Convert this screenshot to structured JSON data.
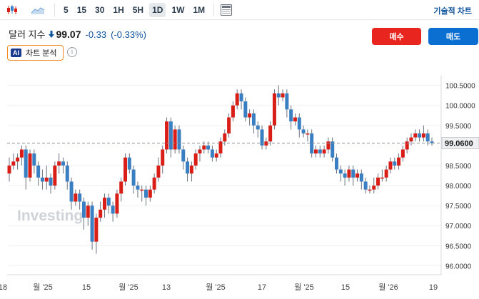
{
  "toolbar": {
    "timeframes": [
      "5",
      "15",
      "30",
      "1H",
      "5H",
      "1D",
      "1W",
      "1M"
    ],
    "active": "1D",
    "tech_chart": "기술적 차트"
  },
  "header": {
    "title": "달러 지수",
    "price": "99.07",
    "change": "-0.33",
    "change_pct": "(-0.33%)",
    "buy": "매수",
    "sell": "매도",
    "ai_badge": "AI",
    "ai_label": "차트 분석",
    "info": "i"
  },
  "watermark": "Investing",
  "colors": {
    "up": "#d91e18",
    "down": "#3a7fc1",
    "accent": "#1256a0"
  },
  "chart_data": {
    "type": "candlestick",
    "ylim": [
      95.9,
      100.6
    ],
    "y_ticks": [
      "100.5000",
      "100.0000",
      "99.5000",
      "98.5000",
      "98.0000",
      "97.5000",
      "97.0000",
      "96.5000",
      "96.0000"
    ],
    "current_price": "99.0600",
    "x_labels": [
      "18",
      "월 '25",
      "15",
      "월 '25",
      "13",
      "월 '25",
      "17",
      "월 '25",
      "15",
      "월 '26",
      "19"
    ],
    "candles": [
      [
        98.3,
        98.5,
        98.1,
        98.7
      ],
      [
        98.5,
        98.6,
        98.4,
        98.8
      ],
      [
        98.6,
        98.7,
        98.4,
        98.8
      ],
      [
        98.7,
        98.9,
        98.5,
        99.0
      ],
      [
        98.9,
        98.2,
        97.9,
        99.0
      ],
      [
        98.2,
        98.8,
        98.1,
        98.9
      ],
      [
        98.8,
        98.5,
        98.3,
        98.9
      ],
      [
        98.5,
        98.2,
        98.0,
        98.6
      ],
      [
        98.2,
        98.1,
        97.9,
        98.4
      ],
      [
        98.1,
        98.2,
        97.9,
        98.5
      ],
      [
        98.2,
        98.0,
        97.8,
        98.3
      ],
      [
        98.0,
        98.5,
        97.9,
        98.6
      ],
      [
        98.5,
        98.6,
        98.3,
        98.8
      ],
      [
        98.6,
        98.5,
        98.3,
        98.7
      ],
      [
        98.5,
        98.1,
        97.9,
        98.6
      ],
      [
        98.1,
        97.6,
        97.4,
        98.2
      ],
      [
        97.6,
        97.8,
        97.5,
        97.9
      ],
      [
        97.8,
        97.6,
        97.4,
        97.9
      ],
      [
        97.6,
        97.2,
        96.9,
        97.7
      ],
      [
        97.2,
        97.5,
        97.0,
        97.6
      ],
      [
        97.5,
        96.6,
        96.4,
        97.6
      ],
      [
        96.6,
        97.2,
        96.3,
        97.3
      ],
      [
        97.2,
        97.4,
        97.1,
        97.6
      ],
      [
        97.4,
        97.7,
        97.2,
        97.8
      ],
      [
        97.7,
        97.5,
        97.3,
        97.8
      ],
      [
        97.5,
        97.3,
        97.1,
        97.6
      ],
      [
        97.3,
        97.8,
        97.2,
        97.9
      ],
      [
        97.8,
        98.1,
        97.6,
        98.2
      ],
      [
        98.1,
        98.7,
        98.0,
        98.8
      ],
      [
        98.7,
        98.4,
        98.3,
        98.8
      ],
      [
        98.4,
        98.0,
        97.8,
        98.5
      ],
      [
        98.0,
        97.9,
        97.7,
        98.1
      ],
      [
        97.9,
        97.9,
        97.6,
        98.0
      ],
      [
        97.9,
        97.7,
        97.5,
        98.0
      ],
      [
        97.7,
        97.9,
        97.6,
        98.0
      ],
      [
        97.9,
        98.2,
        97.8,
        98.3
      ],
      [
        98.2,
        98.5,
        98.1,
        98.7
      ],
      [
        98.5,
        98.9,
        98.3,
        99.0
      ],
      [
        98.9,
        99.6,
        98.8,
        99.7
      ],
      [
        99.6,
        98.9,
        98.7,
        99.7
      ],
      [
        98.9,
        99.4,
        98.8,
        99.5
      ],
      [
        99.4,
        98.9,
        98.8,
        99.5
      ],
      [
        98.9,
        98.6,
        98.4,
        99.0
      ],
      [
        98.6,
        98.3,
        98.1,
        98.7
      ],
      [
        98.3,
        98.5,
        98.1,
        98.6
      ],
      [
        98.5,
        98.8,
        98.4,
        98.9
      ],
      [
        98.8,
        98.9,
        98.6,
        99.0
      ],
      [
        98.9,
        99.0,
        98.8,
        99.1
      ],
      [
        99.0,
        98.9,
        98.8,
        99.1
      ],
      [
        98.9,
        98.7,
        98.6,
        99.0
      ],
      [
        98.7,
        98.8,
        98.6,
        98.9
      ],
      [
        98.8,
        99.1,
        98.7,
        99.2
      ],
      [
        99.1,
        99.3,
        99.0,
        99.4
      ],
      [
        99.3,
        99.7,
        99.2,
        99.8
      ],
      [
        99.7,
        100.0,
        99.6,
        100.1
      ],
      [
        100.0,
        100.3,
        99.9,
        100.4
      ],
      [
        100.3,
        100.1,
        99.9,
        100.4
      ],
      [
        100.1,
        99.7,
        99.6,
        100.2
      ],
      [
        99.7,
        99.8,
        99.5,
        99.9
      ],
      [
        99.8,
        99.5,
        99.3,
        99.9
      ],
      [
        99.5,
        99.4,
        99.2,
        99.6
      ],
      [
        99.4,
        99.0,
        98.9,
        99.5
      ],
      [
        99.0,
        99.1,
        98.9,
        99.2
      ],
      [
        99.1,
        99.5,
        99.0,
        99.6
      ],
      [
        99.5,
        100.3,
        99.4,
        100.4
      ],
      [
        100.3,
        100.2,
        100.0,
        100.5
      ],
      [
        100.2,
        100.3,
        100.1,
        100.4
      ],
      [
        100.3,
        99.9,
        99.7,
        100.4
      ],
      [
        99.9,
        99.6,
        99.4,
        100.0
      ],
      [
        99.6,
        99.7,
        99.5,
        99.8
      ],
      [
        99.7,
        99.4,
        99.2,
        99.8
      ],
      [
        99.4,
        99.3,
        99.2,
        99.5
      ],
      [
        99.3,
        99.3,
        99.1,
        99.4
      ],
      [
        99.3,
        98.8,
        98.7,
        99.4
      ],
      [
        98.8,
        98.9,
        98.7,
        99.0
      ],
      [
        98.9,
        98.8,
        98.7,
        99.0
      ],
      [
        98.8,
        98.9,
        98.7,
        99.0
      ],
      [
        98.9,
        99.1,
        98.8,
        99.2
      ],
      [
        99.1,
        98.7,
        98.6,
        99.2
      ],
      [
        98.7,
        98.4,
        98.3,
        98.8
      ],
      [
        98.4,
        98.3,
        98.1,
        98.5
      ],
      [
        98.3,
        98.2,
        98.0,
        98.4
      ],
      [
        98.2,
        98.4,
        98.1,
        98.5
      ],
      [
        98.4,
        98.2,
        98.0,
        98.5
      ],
      [
        98.2,
        98.3,
        98.1,
        98.4
      ],
      [
        98.3,
        98.1,
        97.9,
        98.4
      ],
      [
        98.1,
        97.9,
        97.8,
        98.2
      ],
      [
        97.9,
        97.9,
        97.8,
        98.0
      ],
      [
        97.9,
        98.0,
        97.8,
        98.2
      ],
      [
        98.0,
        98.2,
        97.9,
        98.3
      ],
      [
        98.2,
        98.2,
        98.1,
        98.4
      ],
      [
        98.2,
        98.4,
        98.1,
        98.5
      ],
      [
        98.4,
        98.6,
        98.3,
        98.7
      ],
      [
        98.6,
        98.5,
        98.4,
        98.7
      ],
      [
        98.5,
        98.7,
        98.4,
        98.8
      ],
      [
        98.7,
        98.9,
        98.6,
        99.0
      ],
      [
        98.9,
        99.1,
        98.8,
        99.2
      ],
      [
        99.1,
        99.2,
        99.0,
        99.3
      ],
      [
        99.2,
        99.3,
        99.1,
        99.4
      ],
      [
        99.3,
        99.2,
        99.1,
        99.4
      ],
      [
        99.2,
        99.3,
        99.1,
        99.5
      ],
      [
        99.3,
        99.1,
        99.0,
        99.4
      ],
      [
        99.1,
        99.06,
        99.0,
        99.2
      ]
    ]
  }
}
